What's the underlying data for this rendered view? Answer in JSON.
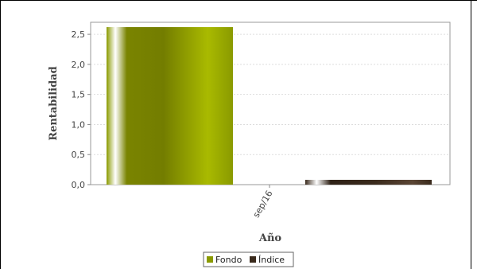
{
  "chart_data": {
    "type": "bar",
    "categories": [
      "sep/16"
    ],
    "series": [
      {
        "name": "Fondo",
        "values": [
          2.62
        ]
      },
      {
        "name": "Índice",
        "values": [
          0.08
        ]
      }
    ],
    "title": "",
    "xlabel": "Año",
    "ylabel": "Rentabilidad",
    "ylim": [
      0,
      2.7
    ],
    "yticks": [
      0.0,
      0.5,
      1.0,
      1.5,
      2.0,
      2.5
    ],
    "ytick_labels": [
      "0,0",
      "0,5",
      "1,0",
      "1,5",
      "2,0",
      "2,5"
    ],
    "grid": true,
    "legend_placement": "bottom-center",
    "colors": {
      "Fondo": "#8a9a00",
      "Índice": "#3a2a1c"
    }
  }
}
